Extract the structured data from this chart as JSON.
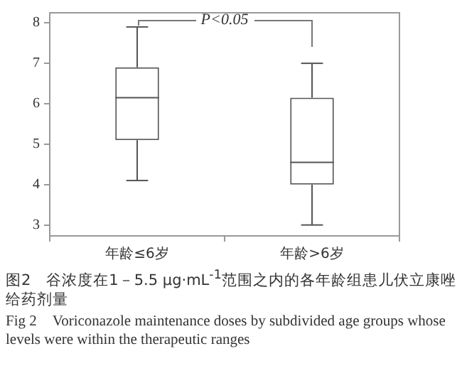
{
  "chart_data": {
    "type": "box",
    "categories": [
      "年龄≤6岁",
      "年龄>6岁"
    ],
    "boxes": [
      {
        "low": 4.1,
        "q1": 5.1,
        "median": 6.15,
        "q3": 6.9,
        "high": 7.9
      },
      {
        "low": 3.0,
        "q1": 4.0,
        "median": 4.55,
        "q3": 6.15,
        "high": 7.0
      }
    ],
    "color": "#555555",
    "ylim": [
      2.73,
      8.25
    ],
    "yticks": [
      3,
      4,
      5,
      6,
      7,
      8
    ],
    "grid": false,
    "legend": false,
    "annotations": [
      "P<0.05",
      "图2　谷浓度在1－5.5 μg·mL$^{-1}$范围之内的各年龄组患儿伏立康唑给药剂量",
      "Fig 2　Voriconazole maintenance doses by subdivided age groups whose levels were within the therapeutic ranges"
    ]
  }
}
